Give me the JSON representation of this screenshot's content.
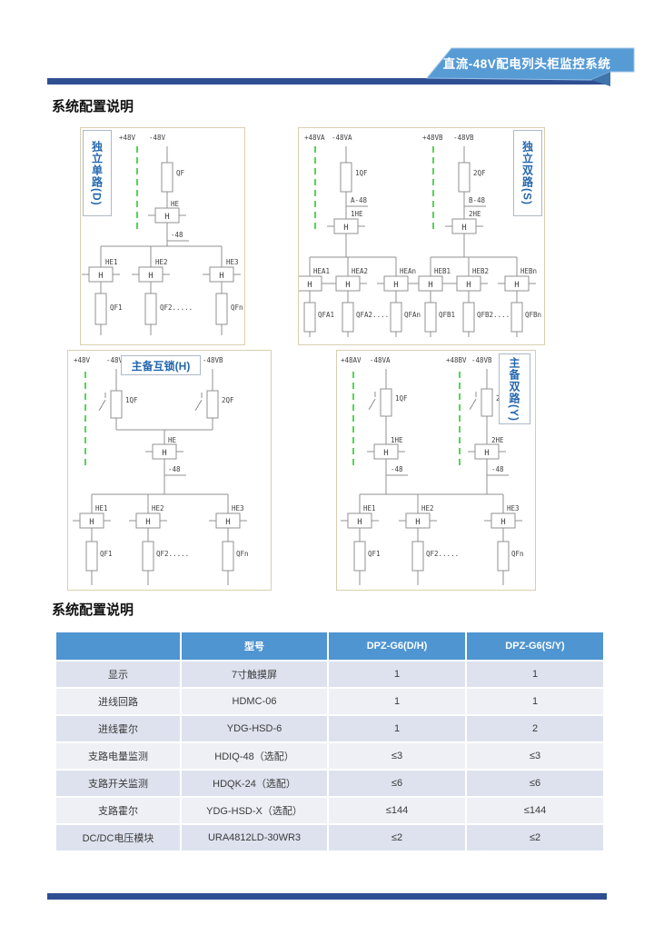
{
  "header": {
    "ribbon_label": "直流-48V配电列头柜监控系统",
    "ribbon_color": "#579bd5",
    "ribbon_fold_color": "#3e75ab",
    "bar_color": "#2f4f93"
  },
  "sections": {
    "config_title_1": "系统配置说明",
    "config_title_2": "系统配置说明"
  },
  "colors": {
    "table_header_blue": "#4f95d1",
    "row_odd": "#dde2ee",
    "row_even": "#eef0f6",
    "diagram_frame": "#d9cfb0",
    "diagram_line": "#909090",
    "dashed_green": "#55d455",
    "title_blue": "#2467ae"
  },
  "diagrams": {
    "d1": {
      "title": "独立单路(D)",
      "pos": "+48V",
      "neg": "-48V",
      "qf": "QF",
      "he": "HE",
      "h": "H",
      "bus": "-48",
      "bhe": [
        "HE1",
        "HE2",
        "HE3"
      ],
      "bqf": [
        "QF1",
        "QF2.....",
        "QFn"
      ]
    },
    "d2": {
      "title": "独立双路(S)",
      "a_pos": "+48VA",
      "a_neg": "-48VA",
      "b_pos": "+48VB",
      "b_neg": "-48VB",
      "a_qf": "1QF",
      "b_qf": "2QF",
      "a_bus": "A-48",
      "b_bus": "B-48",
      "a_he": "1HE",
      "b_he": "2HE",
      "h": "H",
      "a_bhe": [
        "HEA1",
        "HEA2",
        "HEAn"
      ],
      "a_bqf": [
        "QFA1",
        "QFA2....",
        "QFAn"
      ],
      "b_bhe": [
        "HEB1",
        "HEB2",
        "HEBn"
      ],
      "b_bqf": [
        "QFB1",
        "QFB2....",
        "QFBn"
      ]
    },
    "d3": {
      "title": "主备互锁(H)",
      "pos": "+48V",
      "a_neg": "-48VA",
      "b_neg": "-48VB",
      "a_qf": "1QF",
      "b_qf": "2QF",
      "he": "HE",
      "h": "H",
      "bus": "-48",
      "bhe": [
        "HE1",
        "HE2",
        "HE3"
      ],
      "bqf": [
        "QF1",
        "QF2.....",
        "QFn"
      ]
    },
    "d4": {
      "title": "主备双路(Y)",
      "a_pos": "+48AV",
      "a_neg": "-48VA",
      "b_pos": "+48BV",
      "b_neg": "-48VB",
      "a_qf": "1QF",
      "b_qf": "2QF",
      "a_he": "1HE",
      "b_he": "2HE",
      "h": "H",
      "a_bus": "-48",
      "b_bus": "-48",
      "bhe": [
        "HE1",
        "HE2",
        "HE3"
      ],
      "bqf": [
        "QF1",
        "QF2.....",
        "QFn"
      ]
    }
  },
  "table": {
    "headers": [
      "",
      "型号",
      "DPZ-G6(D/H)",
      "DPZ-G6(S/Y)"
    ],
    "rows": [
      [
        "显示",
        "7寸触摸屏",
        "1",
        "1"
      ],
      [
        "进线回路",
        "HDMC-06",
        "1",
        "1"
      ],
      [
        "进线霍尔",
        "YDG-HSD-6",
        "1",
        "2"
      ],
      [
        "支路电量监测",
        "HDIQ-48（选配）",
        "≤3",
        "≤3"
      ],
      [
        "支路开关监测",
        "HDQK-24（选配）",
        "≤6",
        "≤6"
      ],
      [
        "支路霍尔",
        "YDG-HSD-X（选配）",
        "≤144",
        "≤144"
      ],
      [
        "DC/DC电压模块",
        "URA4812LD-30WR3",
        "≤2",
        "≤2"
      ]
    ]
  }
}
